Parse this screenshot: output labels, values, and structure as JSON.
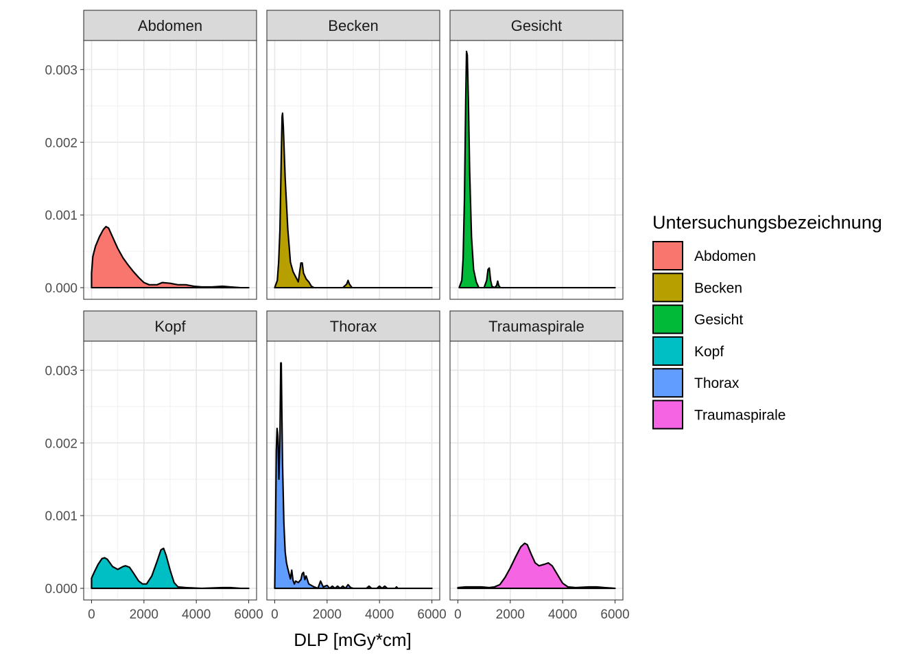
{
  "chart_data": {
    "type": "area",
    "chart_kind": "faceted density plot",
    "xlabel": "DLP [mGy*cm]",
    "ylabel": "",
    "xlim": [
      -300,
      6300
    ],
    "ylim": [
      -0.00016,
      0.0034
    ],
    "x_ticks": [
      0,
      2000,
      4000,
      6000
    ],
    "y_ticks": [
      0.0,
      0.001,
      0.002,
      0.003
    ],
    "y_tick_labels": [
      "0.000",
      "0.001",
      "0.002",
      "0.003"
    ],
    "grid": true,
    "facet_layout": {
      "rows": 2,
      "cols": 3
    },
    "legend": {
      "title": "Untersuchungsbezeichnung",
      "position": "right"
    },
    "series": [
      {
        "name": "Abdomen",
        "color": "#F8766D",
        "points": [
          [
            0,
            0.0002
          ],
          [
            50,
            0.00043
          ],
          [
            150,
            0.00057
          ],
          [
            300,
            0.0007
          ],
          [
            450,
            0.0008
          ],
          [
            550,
            0.00084
          ],
          [
            650,
            0.00082
          ],
          [
            800,
            0.0007
          ],
          [
            1000,
            0.00054
          ],
          [
            1200,
            0.00041
          ],
          [
            1400,
            0.00031
          ],
          [
            1600,
            0.00022
          ],
          [
            1800,
            0.00014
          ],
          [
            2000,
            7e-05
          ],
          [
            2200,
            4e-05
          ],
          [
            2500,
            4e-05
          ],
          [
            2700,
            7e-05
          ],
          [
            3000,
            6e-05
          ],
          [
            3300,
            4e-05
          ],
          [
            3600,
            4e-05
          ],
          [
            3900,
            2e-05
          ],
          [
            4200,
            1e-05
          ],
          [
            4600,
            1e-05
          ],
          [
            5000,
            2e-05
          ],
          [
            5300,
            1e-05
          ],
          [
            5700,
            0.0
          ],
          [
            6000,
            0.0
          ]
        ]
      },
      {
        "name": "Becken",
        "color": "#B79F00",
        "points": [
          [
            0,
            0.0
          ],
          [
            100,
            0.0001
          ],
          [
            150,
            0.00035
          ],
          [
            200,
            0.0008
          ],
          [
            250,
            0.0018
          ],
          [
            280,
            0.00235
          ],
          [
            300,
            0.0024
          ],
          [
            330,
            0.0022
          ],
          [
            400,
            0.0015
          ],
          [
            500,
            0.0008
          ],
          [
            600,
            0.00035
          ],
          [
            700,
            0.00022
          ],
          [
            800,
            0.00015
          ],
          [
            900,
            8e-05
          ],
          [
            1000,
            0.00034
          ],
          [
            1050,
            0.00034
          ],
          [
            1100,
            0.0002
          ],
          [
            1200,
            0.00012
          ],
          [
            1300,
            8e-05
          ],
          [
            1400,
            2e-05
          ],
          [
            1500,
            0.0
          ],
          [
            2600,
            0.0
          ],
          [
            2750,
            5e-05
          ],
          [
            2800,
            0.0001
          ],
          [
            2850,
            5e-05
          ],
          [
            2950,
            0.0
          ],
          [
            6000,
            0.0
          ]
        ]
      },
      {
        "name": "Gesicht",
        "color": "#00BA38",
        "points": [
          [
            50,
            0.0
          ],
          [
            150,
            0.0001
          ],
          [
            200,
            0.0004
          ],
          [
            250,
            0.0012
          ],
          [
            300,
            0.0026
          ],
          [
            330,
            0.00325
          ],
          [
            360,
            0.0032
          ],
          [
            400,
            0.0026
          ],
          [
            450,
            0.0016
          ],
          [
            520,
            0.0007
          ],
          [
            600,
            0.00025
          ],
          [
            700,
            8e-05
          ],
          [
            800,
            0.0
          ],
          [
            1000,
            0.0
          ],
          [
            1050,
            5e-05
          ],
          [
            1100,
            0.0001
          ],
          [
            1150,
            0.00025
          ],
          [
            1200,
            0.00027
          ],
          [
            1250,
            0.0001
          ],
          [
            1300,
            2e-05
          ],
          [
            1400,
            0.0
          ],
          [
            1480,
            3e-05
          ],
          [
            1520,
            9e-05
          ],
          [
            1560,
            3e-05
          ],
          [
            1620,
            0.0
          ],
          [
            6000,
            0.0
          ]
        ]
      },
      {
        "name": "Kopf",
        "color": "#00BFC4",
        "points": [
          [
            0,
            0.00014
          ],
          [
            100,
            0.00022
          ],
          [
            250,
            0.00033
          ],
          [
            400,
            0.00041
          ],
          [
            500,
            0.00042
          ],
          [
            600,
            0.0004
          ],
          [
            800,
            0.0003
          ],
          [
            1000,
            0.00026
          ],
          [
            1200,
            0.0003
          ],
          [
            1300,
            0.00031
          ],
          [
            1450,
            0.00029
          ],
          [
            1600,
            0.00021
          ],
          [
            1800,
            0.0001
          ],
          [
            1950,
            6e-05
          ],
          [
            2100,
            6e-05
          ],
          [
            2300,
            0.00017
          ],
          [
            2500,
            0.00037
          ],
          [
            2650,
            0.00053
          ],
          [
            2750,
            0.00055
          ],
          [
            2850,
            0.00045
          ],
          [
            3000,
            0.00025
          ],
          [
            3150,
            8e-05
          ],
          [
            3300,
            2e-05
          ],
          [
            3600,
            1e-05
          ],
          [
            4200,
            0.0
          ],
          [
            5000,
            1e-05
          ],
          [
            5300,
            1e-05
          ],
          [
            5700,
            0.0
          ],
          [
            6000,
            0.0
          ]
        ]
      },
      {
        "name": "Thorax",
        "color": "#619CFF",
        "points": [
          [
            0,
            0.0
          ],
          [
            30,
            0.0008
          ],
          [
            60,
            0.0019
          ],
          [
            90,
            0.0022
          ],
          [
            120,
            0.0021
          ],
          [
            160,
            0.0015
          ],
          [
            200,
            0.0021
          ],
          [
            230,
            0.0031
          ],
          [
            250,
            0.0031
          ],
          [
            270,
            0.0025
          ],
          [
            300,
            0.0017
          ],
          [
            350,
            0.0009
          ],
          [
            400,
            0.0005
          ],
          [
            450,
            0.00035
          ],
          [
            500,
            0.00027
          ],
          [
            550,
            0.0002
          ],
          [
            600,
            0.00013
          ],
          [
            650,
            0.00025
          ],
          [
            700,
            0.00011
          ],
          [
            750,
            6e-05
          ],
          [
            800,
            0.0001
          ],
          [
            900,
            8e-05
          ],
          [
            1000,
            0.00012
          ],
          [
            1050,
            0.0002
          ],
          [
            1100,
            0.00022
          ],
          [
            1150,
            0.00012
          ],
          [
            1200,
            0.00017
          ],
          [
            1300,
            6e-05
          ],
          [
            1400,
            4e-05
          ],
          [
            1500,
            2e-05
          ],
          [
            1650,
            0.0
          ],
          [
            1750,
            0.0001
          ],
          [
            1850,
            2e-05
          ],
          [
            2000,
            4e-05
          ],
          [
            2100,
            0.0
          ],
          [
            2200,
            3e-05
          ],
          [
            2300,
            0.0
          ],
          [
            2400,
            3e-05
          ],
          [
            2500,
            0.0
          ],
          [
            2600,
            3e-05
          ],
          [
            2700,
            0.0
          ],
          [
            2800,
            5e-05
          ],
          [
            2900,
            1e-05
          ],
          [
            3000,
            0.0
          ],
          [
            3500,
            0.0
          ],
          [
            3600,
            3e-05
          ],
          [
            3700,
            0.0
          ],
          [
            3900,
            0.0
          ],
          [
            4000,
            3e-05
          ],
          [
            4100,
            0.0
          ],
          [
            4200,
            3e-05
          ],
          [
            4300,
            0.0
          ],
          [
            4600,
            0.0
          ],
          [
            4650,
            2e-05
          ],
          [
            4700,
            0.0
          ],
          [
            6000,
            0.0
          ]
        ]
      },
      {
        "name": "Traumaspirale",
        "color": "#F564E3",
        "points": [
          [
            0,
            1e-05
          ],
          [
            300,
            2e-05
          ],
          [
            600,
            2e-05
          ],
          [
            900,
            2e-05
          ],
          [
            1200,
            1e-05
          ],
          [
            1400,
            2e-05
          ],
          [
            1600,
            5e-05
          ],
          [
            1800,
            0.00015
          ],
          [
            2000,
            0.00028
          ],
          [
            2200,
            0.00043
          ],
          [
            2400,
            0.00057
          ],
          [
            2550,
            0.00062
          ],
          [
            2650,
            0.0006
          ],
          [
            2800,
            0.00047
          ],
          [
            2950,
            0.00035
          ],
          [
            3100,
            0.00031
          ],
          [
            3300,
            0.00033
          ],
          [
            3450,
            0.00035
          ],
          [
            3600,
            0.00031
          ],
          [
            3800,
            0.00019
          ],
          [
            4000,
            7e-05
          ],
          [
            4200,
            2e-05
          ],
          [
            4500,
            1e-05
          ],
          [
            5000,
            2e-05
          ],
          [
            5300,
            2e-05
          ],
          [
            5600,
            1e-05
          ],
          [
            6000,
            0.0
          ]
        ]
      }
    ]
  }
}
